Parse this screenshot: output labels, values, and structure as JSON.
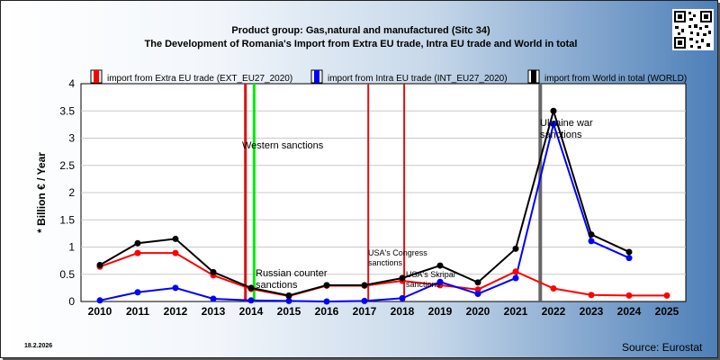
{
  "header": {
    "title_line1": "Product group: Gas,natural and manufactured (Sitc 34)",
    "title_line2": "The Development of Romania's Import from Extra EU trade, Intra EU trade and World in total"
  },
  "footer": {
    "date": "18.2.2026",
    "source": "Source: Eurostat"
  },
  "colors": {
    "extra_eu": "#ff0000",
    "intra_eu": "#0000ff",
    "world": "#000000",
    "marker_red": "#dd1111",
    "marker_green": "#00ee00",
    "marker_gray": "#666666"
  },
  "chart_data": {
    "type": "line",
    "ylabel": "* Billion € / Year",
    "ylim": [
      0,
      4
    ],
    "yticks": [
      "0",
      "0.5",
      "1",
      "1.5",
      "2",
      "2.5",
      "3",
      "3.5",
      "4"
    ],
    "x": [
      "2010",
      "2011",
      "2012",
      "2013",
      "2014",
      "2015",
      "2016",
      "2017",
      "2018",
      "2019",
      "2020",
      "2021",
      "2022",
      "2023",
      "2024",
      "2025"
    ],
    "grid": "horizontal",
    "legend_position": "top",
    "series": [
      {
        "name": "import from Extra EU trade (EXT_EU27_2020)",
        "color": "#ff0000",
        "values": [
          0.64,
          0.89,
          0.89,
          0.48,
          0.23,
          0.1,
          0.29,
          0.29,
          0.38,
          0.3,
          0.22,
          0.55,
          0.24,
          0.12,
          0.11,
          0.11
        ]
      },
      {
        "name": "import from Intra EU trade (INT_EU27_2020)",
        "color": "#0000ff",
        "values": [
          0.02,
          0.17,
          0.25,
          0.05,
          0.02,
          0.01,
          0.0,
          0.01,
          0.06,
          0.36,
          0.14,
          0.43,
          3.26,
          1.11,
          0.8,
          null
        ]
      },
      {
        "name": "import from World in total (WORLD)",
        "color": "#000000",
        "values": [
          0.67,
          1.07,
          1.15,
          0.54,
          0.25,
          0.11,
          0.3,
          0.3,
          0.43,
          0.66,
          0.35,
          0.97,
          3.5,
          1.23,
          0.91,
          null
        ]
      }
    ],
    "annotations": [
      {
        "label": "",
        "x": 2013.85,
        "color": "#dd1111"
      },
      {
        "label": "Western sanctions",
        "x": 2014.08,
        "color": "#00ee00"
      },
      {
        "label": "Russian counter sanctions",
        "x": 2014.08
      },
      {
        "label": "USA's Congress sanctions",
        "x": 2017.1,
        "color": "#dd1111"
      },
      {
        "label": "USA's Skripal sanctions",
        "x": 2018.05,
        "color": "#dd1111"
      },
      {
        "label": "Ukraine war sanctions",
        "x": 2021.65,
        "color": "#666666"
      }
    ]
  }
}
